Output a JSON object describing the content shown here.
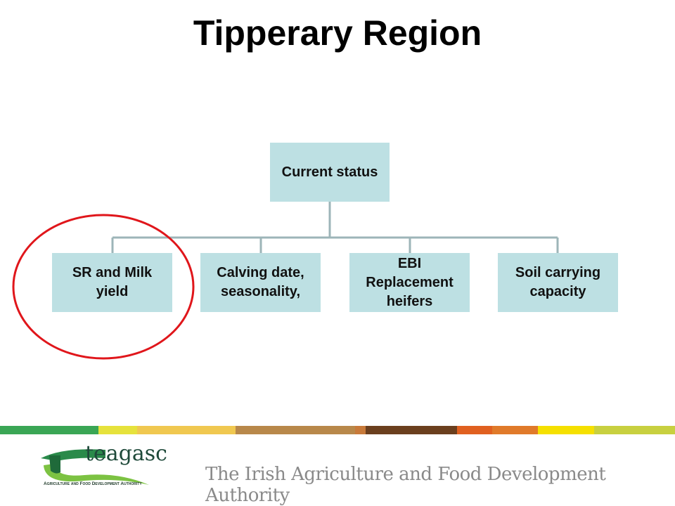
{
  "header": {
    "title": "Tipperary Region"
  },
  "diagram": {
    "root": {
      "label": "Current status"
    },
    "children": [
      {
        "label": "SR and Milk yield"
      },
      {
        "label": "Calving date, seasonality,"
      },
      {
        "label": "EBI Replacement heifers"
      },
      {
        "label": "Soil carrying capacity"
      }
    ]
  },
  "footer": {
    "logo": {
      "name": "teagasc",
      "subtitle": "Agriculture and Food Development Authority"
    },
    "tagline": "The Irish Agriculture and Food Development Authority"
  }
}
